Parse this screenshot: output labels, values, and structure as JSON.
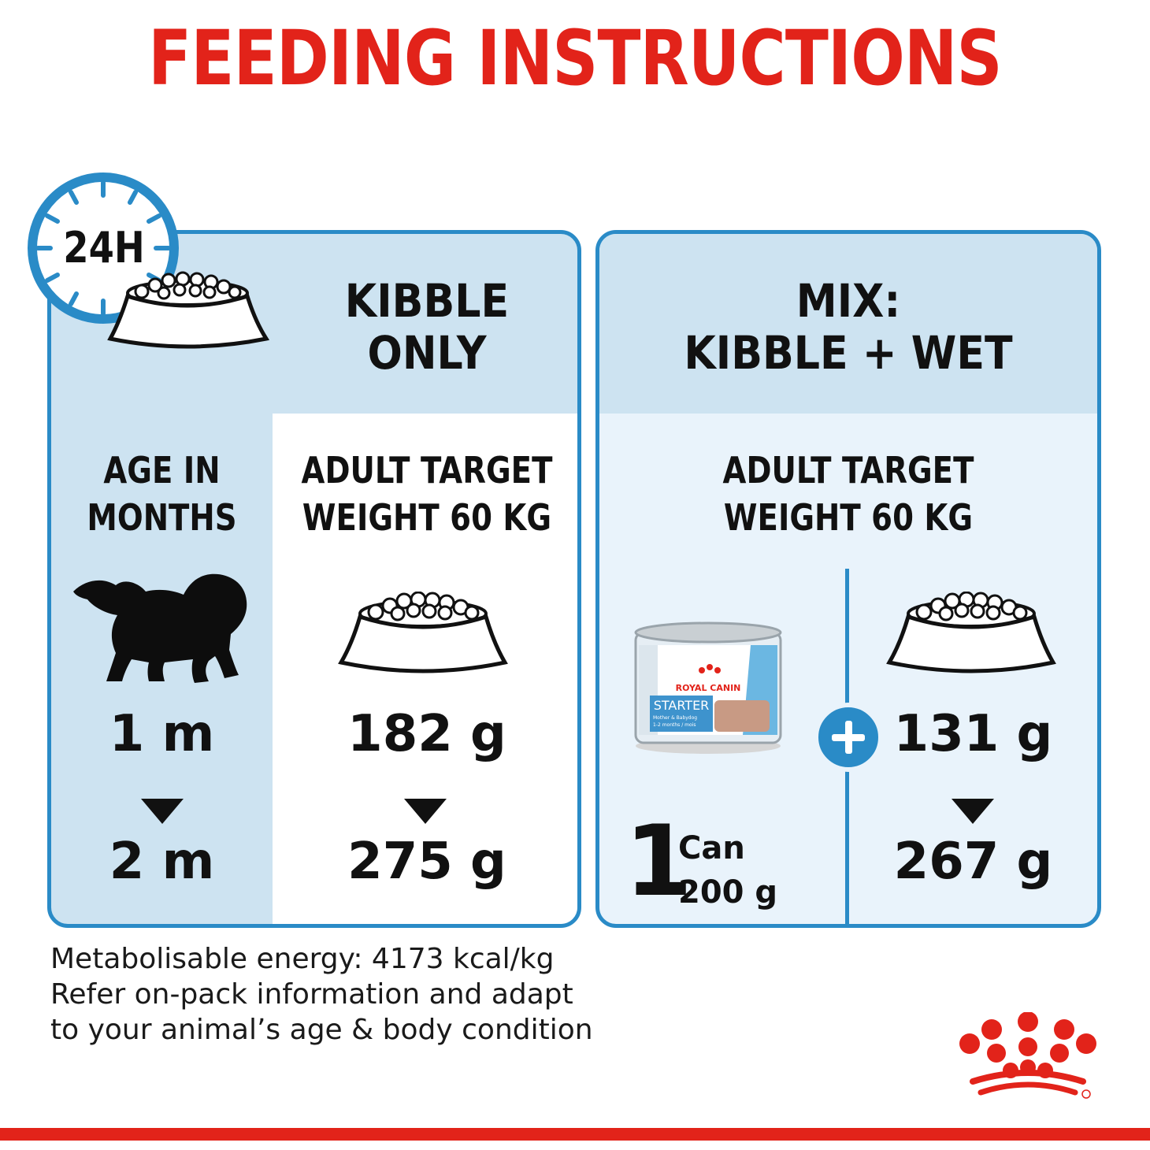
{
  "title": "FEEDING INSTRUCTIONS",
  "clock": {
    "label": "24H"
  },
  "left_panel": {
    "header": [
      "KIBBLE",
      "ONLY"
    ],
    "age_header": [
      "AGE IN",
      "MONTHS"
    ],
    "target_header": [
      "ADULT TARGET",
      "WEIGHT 60 KG"
    ],
    "age_from": "1 m",
    "age_to": "2 m",
    "amount_from": "182 g",
    "amount_to": "275 g"
  },
  "right_panel": {
    "header": [
      "MIX:",
      "KIBBLE + WET"
    ],
    "target_header": [
      "ADULT TARGET",
      "WEIGHT 60 KG"
    ],
    "can": {
      "count": "1",
      "unit": "Can",
      "weight": "200 g",
      "brand": "ROYAL CANIN",
      "product": "STARTER",
      "product_sub": [
        "Mother & Babydog",
        "1-2 months / mois"
      ]
    },
    "amount_from": "131 g",
    "amount_to": "267 g"
  },
  "footer": [
    "Metabolisable energy: 4173 kcal/kg",
    "Refer on-pack information and adapt",
    "to your animal’s age & body condition"
  ],
  "colors": {
    "brand_red": "#e2231a",
    "accent_blue": "#2a8bc7",
    "panel_blue": "#cde3f1"
  },
  "icons": [
    "clock-icon",
    "kibble-bowl-icon",
    "puppy-silhouette-icon",
    "wet-food-can-icon",
    "plus-icon",
    "royal-canin-crown-logo"
  ]
}
